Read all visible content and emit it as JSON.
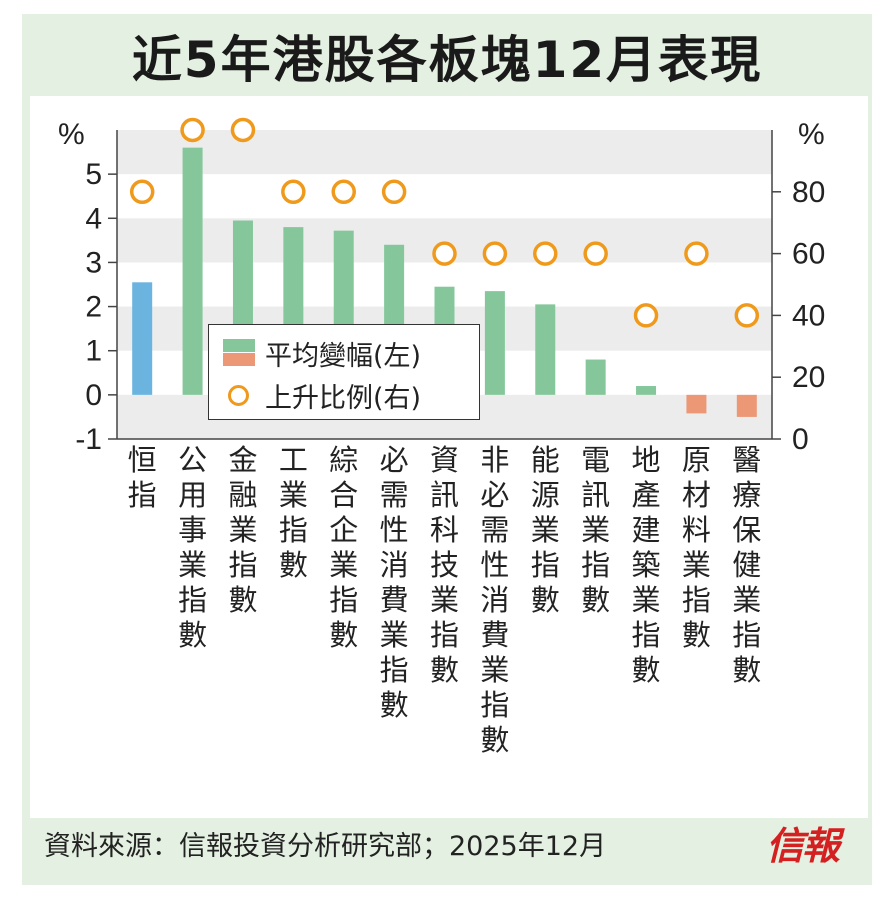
{
  "title": "近5年港股各板塊12月表現",
  "source": "資料來源：信報投資分析研究部；2025年12月",
  "logo": "信報",
  "legend": {
    "bar_label": "平均變幅(左)",
    "ring_label": "上升比例(右)"
  },
  "colors": {
    "positive": "#85c79b",
    "negative": "#ec9877",
    "index": "#6cb4e0",
    "ring": "#ef9a1c",
    "band": "#ececec"
  },
  "chart_data": {
    "type": "bar",
    "categories": [
      "恒指",
      "公用事業指數",
      "金融業指數",
      "工業指數",
      "綜合企業指數",
      "必需性消費業指數",
      "資訊科技業指數",
      "非必需性消費業指數",
      "能源業指數",
      "電訊業指數",
      "地產建築業指數",
      "原材料業指數",
      "醫療保健業指數"
    ],
    "series": [
      {
        "name": "平均變幅(左)",
        "axis": "left",
        "values": [
          2.55,
          5.6,
          3.95,
          3.8,
          3.72,
          3.4,
          2.45,
          2.35,
          2.05,
          0.8,
          0.2,
          -0.42,
          -0.5
        ]
      },
      {
        "name": "上升比例(右)",
        "axis": "right",
        "values": [
          80,
          100,
          100,
          80,
          80,
          80,
          60,
          60,
          60,
          60,
          40,
          60,
          40
        ]
      }
    ],
    "left_axis": {
      "unit": "%",
      "ylim": [
        -1,
        6
      ],
      "ticks": [
        -1,
        0,
        1,
        2,
        3,
        4,
        5
      ]
    },
    "right_axis": {
      "unit": "%",
      "ylim": [
        0,
        100
      ],
      "ticks": [
        0,
        20,
        40,
        60,
        80
      ]
    },
    "grid": "alternating bands",
    "legend_position": "center-left"
  }
}
